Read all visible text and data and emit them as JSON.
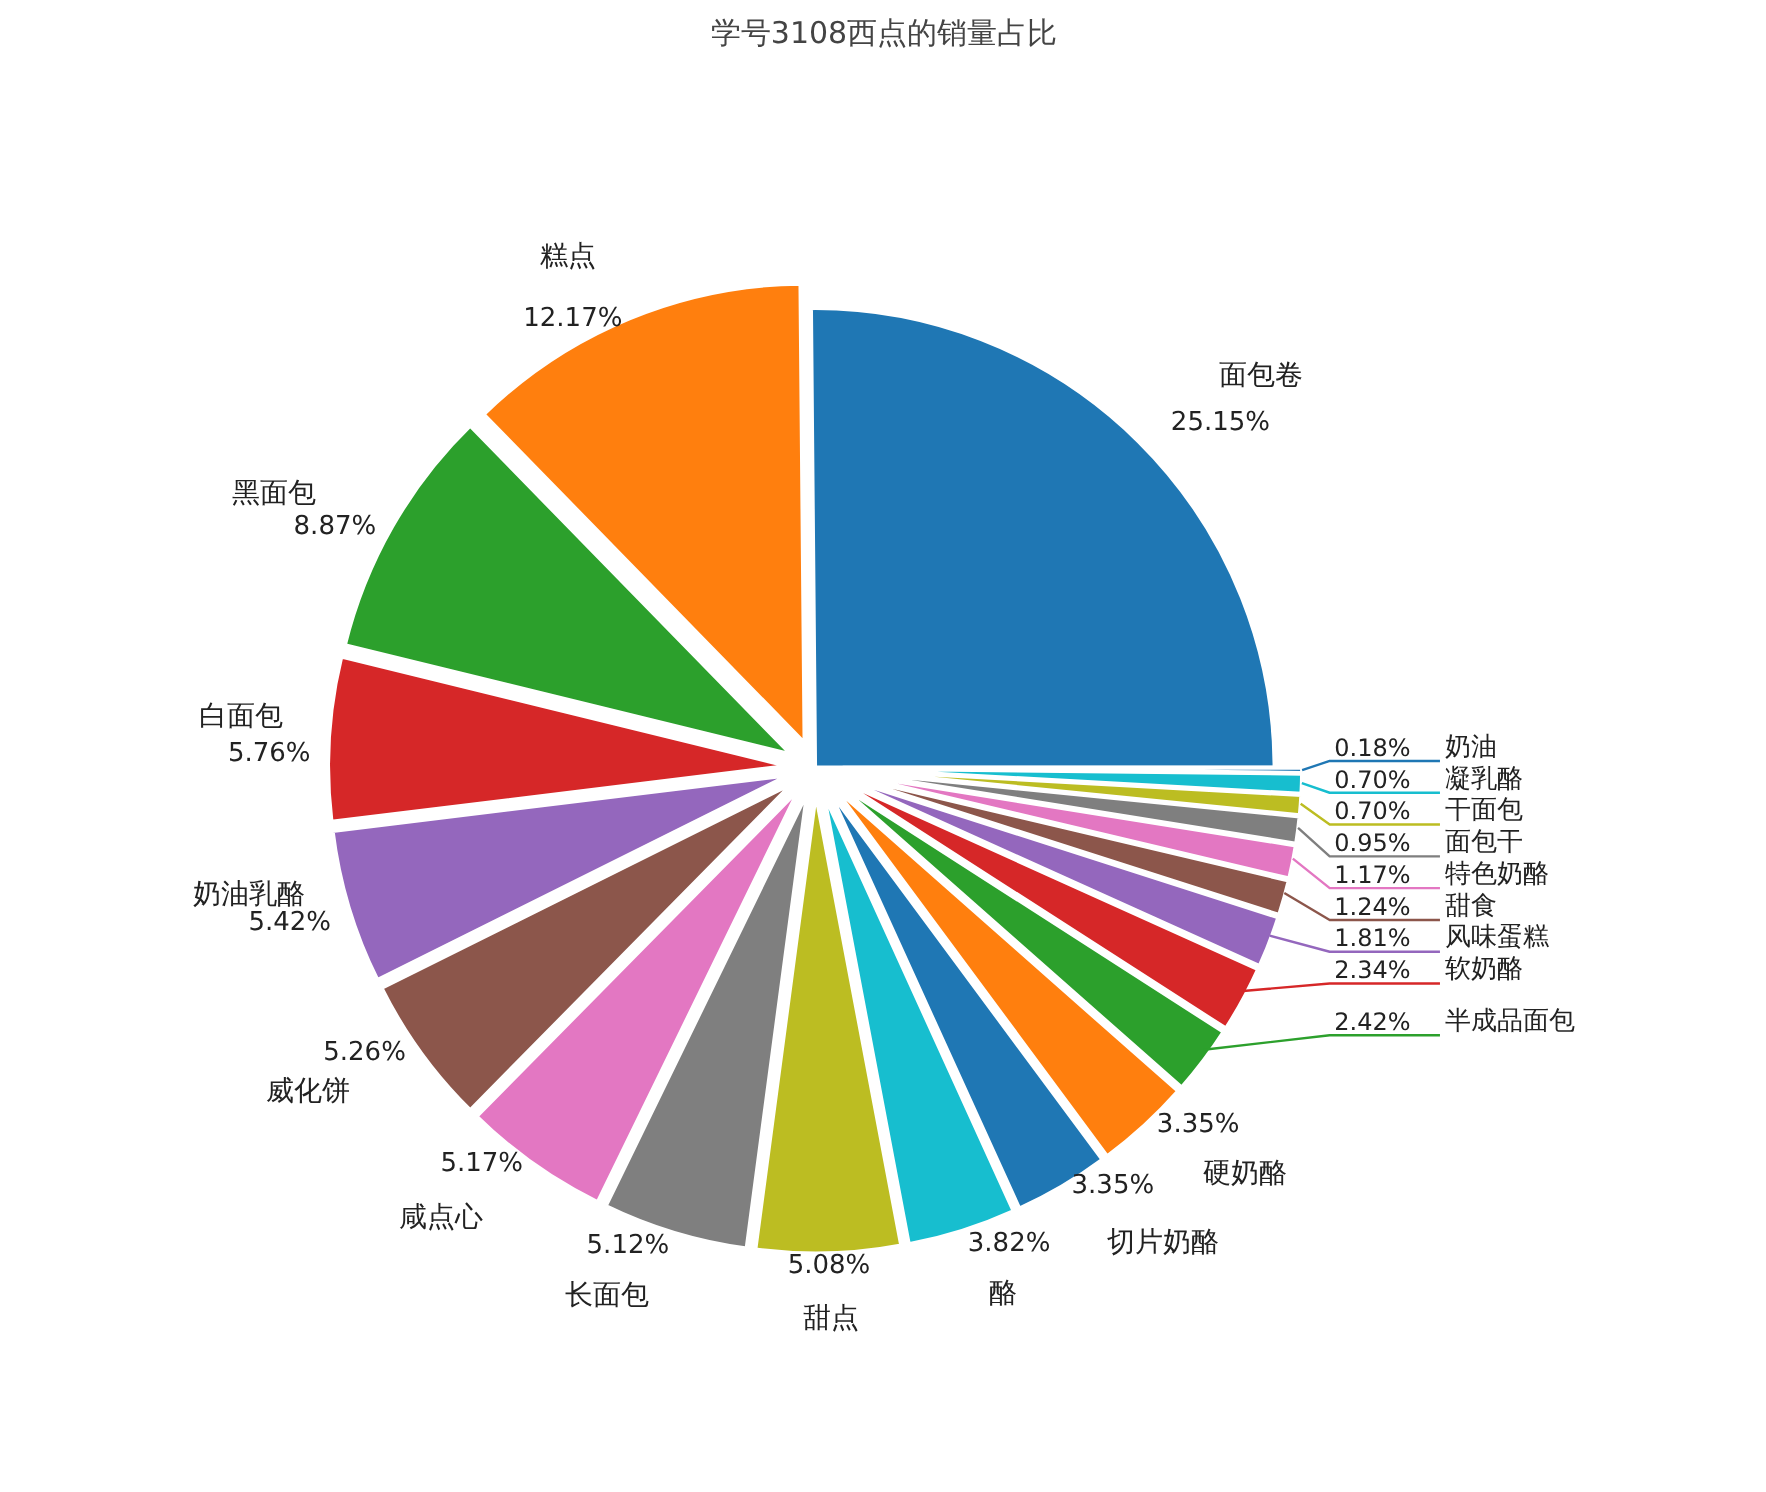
{
  "chart_data": {
    "type": "pie",
    "title": "学号3108西点的销量占比",
    "categories": [
      "面包卷",
      "糕点",
      "黑面包",
      "白面包",
      "奶油乳酪",
      "威化饼",
      "咸点心",
      "长面包",
      "甜点",
      "酪",
      "切片奶酪",
      "硬奶酪",
      "半成品面包",
      "软奶酪",
      "风味蛋糕",
      "甜食",
      "特色奶酪",
      "面包干",
      "干面包",
      "凝乳酪",
      "奶油"
    ],
    "values": [
      25.15,
      12.17,
      8.87,
      5.76,
      5.42,
      5.26,
      5.17,
      5.12,
      5.08,
      3.82,
      3.35,
      3.35,
      2.42,
      2.34,
      1.81,
      1.24,
      1.17,
      0.95,
      0.7,
      0.7,
      0.18
    ],
    "colors": [
      "#1f77b4",
      "#ff7f0e",
      "#2ca02c",
      "#d62728",
      "#9467bd",
      "#8c564b",
      "#e377c2",
      "#7f7f7f",
      "#bcbd22",
      "#17becf",
      "#1f77b4",
      "#ff7f0e",
      "#2ca02c",
      "#d62728",
      "#9467bd",
      "#8c564b",
      "#e377c2",
      "#7f7f7f",
      "#bcbd22",
      "#17becf",
      "#1f77b4"
    ],
    "value_labels": [
      "25.15%",
      "12.17%",
      "8.87%",
      "5.76%",
      "5.42%",
      "5.26%",
      "5.17%",
      "5.12%",
      "5.08%",
      "3.82%",
      "3.35%",
      "3.35%",
      "2.42%",
      "2.34%",
      "1.81%",
      "1.24%",
      "1.17%",
      "0.95%",
      "0.70%",
      "0.70%",
      "0.18%"
    ]
  }
}
